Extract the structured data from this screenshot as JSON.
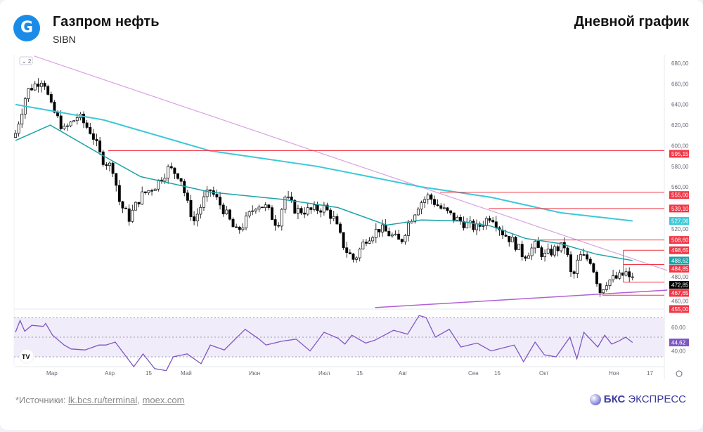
{
  "header": {
    "logo_letter": "G",
    "title": "Газпром нефть",
    "ticker": "SIBN",
    "chart_type": "Дневной график"
  },
  "footer": {
    "sources_prefix": "*Источники: ",
    "source_1": "lk.bcs.ru/terminal",
    "source_2": "moex.com",
    "brand_bold": "БКС",
    "brand_rest": " ЭКСПРЕСС"
  },
  "toolbar": {
    "collapse_label": "⌄ 2"
  },
  "colors": {
    "long_ma": "#3cc8d8",
    "short_ma": "#1aa3a8",
    "trendline": "#d7a2e0",
    "support_line": "#b061d6",
    "level": "#f23645",
    "rsi": "#7e57c2",
    "rsi_band": "#f1ecfa",
    "candle_up": "#ffffff",
    "candle_down": "#000000"
  },
  "chart_data": {
    "type": "candlestick",
    "ylim": [
      450,
      685
    ],
    "y_ticks": [
      "680,00",
      "660,00",
      "640,00",
      "620,00",
      "600,00",
      "580,00",
      "560,00",
      "520,00",
      "480,00",
      "460,00"
    ],
    "y_tick_values": [
      680,
      660,
      640,
      620,
      600,
      580,
      560,
      520,
      480,
      460
    ],
    "x_ticks": [
      "Мар",
      "Апр",
      "15",
      "Май",
      "Июн",
      "Июл",
      "15",
      "Авг",
      "Сен",
      "15",
      "Окт",
      "Ноя",
      "17"
    ],
    "close_path": [
      [
        "02-15",
        612
      ],
      [
        "02-20",
        653
      ],
      [
        "02-27",
        666
      ],
      [
        "03-01",
        639
      ],
      [
        "03-07",
        615
      ],
      [
        "03-13",
        629
      ],
      [
        "03-19",
        612
      ],
      [
        "03-23",
        588
      ],
      [
        "03-28",
        578
      ],
      [
        "03-31",
        544
      ],
      [
        "04-04",
        530
      ],
      [
        "04-09",
        551
      ],
      [
        "04-15",
        561
      ],
      [
        "04-21",
        578
      ],
      [
        "04-26",
        571
      ],
      [
        "04-29",
        544
      ],
      [
        "05-02",
        527
      ],
      [
        "05-06",
        547
      ],
      [
        "05-09",
        557
      ],
      [
        "05-15",
        537
      ],
      [
        "05-20",
        516
      ],
      [
        "05-23",
        523
      ],
      [
        "05-29",
        544
      ],
      [
        "06-02",
        540
      ],
      [
        "06-07",
        523
      ],
      [
        "06-10",
        551
      ],
      [
        "06-15",
        537
      ],
      [
        "06-21",
        537
      ],
      [
        "06-27",
        540
      ],
      [
        "07-01",
        530
      ],
      [
        "07-06",
        500
      ],
      [
        "07-10",
        489
      ],
      [
        "07-15",
        510
      ],
      [
        "07-21",
        520
      ],
      [
        "07-26",
        513
      ],
      [
        "07-30",
        506
      ],
      [
        "08-02",
        523
      ],
      [
        "08-07",
        544
      ],
      [
        "08-11",
        551
      ],
      [
        "08-16",
        540
      ],
      [
        "08-22",
        530
      ],
      [
        "08-28",
        523
      ],
      [
        "09-01",
        520
      ],
      [
        "09-07",
        533
      ],
      [
        "09-12",
        516
      ],
      [
        "09-17",
        506
      ],
      [
        "09-21",
        493
      ],
      [
        "09-26",
        503
      ],
      [
        "09-30",
        493
      ],
      [
        "10-05",
        500
      ],
      [
        "10-09",
        503
      ],
      [
        "10-12",
        469
      ],
      [
        "10-15",
        493
      ],
      [
        "10-20",
        489
      ],
      [
        "10-24",
        459
      ],
      [
        "10-27",
        469
      ],
      [
        "11-01",
        472
      ],
      [
        "11-06",
        479
      ],
      [
        "11-07",
        472.85
      ]
    ],
    "long_ma": [
      [
        "02-15",
        640
      ],
      [
        "03-24",
        625
      ],
      [
        "05-09",
        595
      ],
      [
        "06-24",
        580
      ],
      [
        "08-08",
        560
      ],
      [
        "09-07",
        550
      ],
      [
        "10-07",
        535
      ],
      [
        "11-07",
        527.06
      ]
    ],
    "short_ma": [
      [
        "02-15",
        605
      ],
      [
        "03-01",
        620
      ],
      [
        "03-24",
        590
      ],
      [
        "04-09",
        570
      ],
      [
        "05-09",
        555
      ],
      [
        "06-09",
        548
      ],
      [
        "07-03",
        540
      ],
      [
        "07-24",
        523
      ],
      [
        "08-08",
        528
      ],
      [
        "08-24",
        527
      ],
      [
        "09-07",
        522
      ],
      [
        "09-22",
        510
      ],
      [
        "10-07",
        505
      ],
      [
        "10-22",
        495
      ],
      [
        "11-07",
        488.62
      ]
    ],
    "trendlines": [
      {
        "from": [
          "02-23",
          687
        ],
        "to": [
          "11-22",
          479
        ]
      },
      {
        "from": [
          "07-19",
          443
        ],
        "to": [
          "11-22",
          460
        ]
      }
    ],
    "levels": [
      {
        "value": 595.15,
        "label": "595,15",
        "from": "03-26"
      },
      {
        "value": 555,
        "label": "555,00",
        "from": "08-16"
      },
      {
        "value": 539.1,
        "label": "539,10",
        "from": "09-06"
      },
      {
        "value": 508.6,
        "label": "508,60",
        "from": "09-28"
      },
      {
        "value": 498.65,
        "label": "498,65",
        "from": "11-03"
      },
      {
        "value": 484.85,
        "label": "484,85",
        "from": "11-03"
      },
      {
        "value": 467.65,
        "label": "467,65",
        "from": "11-03"
      },
      {
        "value": 455,
        "label": "455,00",
        "from": "10-25"
      }
    ],
    "price_tags": {
      "long_ma": "527,06",
      "short_ma": "488,62",
      "last": "472,85"
    },
    "rsi": {
      "ylim": [
        20,
        75
      ],
      "band": [
        30,
        70
      ],
      "mid": 50,
      "tick": "60,00",
      "tick2": "40,00",
      "last": "44,62",
      "values": [
        [
          "02-15",
          55
        ],
        [
          "02-17",
          67
        ],
        [
          "02-19",
          56
        ],
        [
          "02-22",
          62
        ],
        [
          "02-27",
          61
        ],
        [
          "02-28",
          64
        ],
        [
          "03-02",
          52
        ],
        [
          "03-07",
          42
        ],
        [
          "03-10",
          38
        ],
        [
          "03-16",
          37
        ],
        [
          "03-22",
          42
        ],
        [
          "03-25",
          42
        ],
        [
          "03-29",
          45
        ],
        [
          "04-06",
          20
        ],
        [
          "04-10",
          33
        ],
        [
          "04-15",
          18
        ],
        [
          "04-20",
          16
        ],
        [
          "04-23",
          30
        ],
        [
          "04-29",
          33
        ],
        [
          "05-05",
          23
        ],
        [
          "05-09",
          42
        ],
        [
          "05-15",
          37
        ],
        [
          "05-24",
          58
        ],
        [
          "05-30",
          48
        ],
        [
          "06-02",
          42
        ],
        [
          "06-09",
          46
        ],
        [
          "06-15",
          48
        ],
        [
          "06-21",
          36
        ],
        [
          "06-27",
          55
        ],
        [
          "07-03",
          49
        ],
        [
          "07-06",
          43
        ],
        [
          "07-09",
          52
        ],
        [
          "07-15",
          44
        ],
        [
          "07-19",
          47
        ],
        [
          "07-27",
          57
        ],
        [
          "08-02",
          53
        ],
        [
          "08-07",
          72
        ],
        [
          "08-10",
          70
        ],
        [
          "08-14",
          50
        ],
        [
          "08-20",
          58
        ],
        [
          "08-25",
          40
        ],
        [
          "09-01",
          44
        ],
        [
          "09-07",
          36
        ],
        [
          "09-17",
          42
        ],
        [
          "09-21",
          25
        ],
        [
          "09-26",
          45
        ],
        [
          "09-30",
          32
        ],
        [
          "10-05",
          30
        ],
        [
          "10-11",
          50
        ],
        [
          "10-14",
          28
        ],
        [
          "10-17",
          55
        ],
        [
          "10-23",
          40
        ],
        [
          "10-26",
          52
        ],
        [
          "10-29",
          43
        ],
        [
          "11-01",
          46
        ],
        [
          "11-04",
          50
        ],
        [
          "11-07",
          44.62
        ]
      ]
    }
  }
}
